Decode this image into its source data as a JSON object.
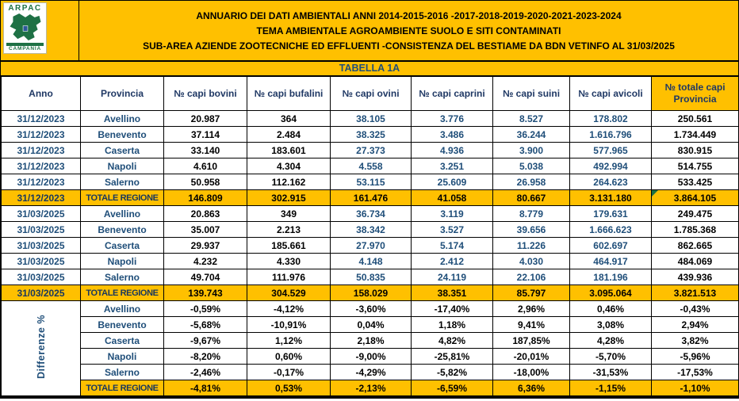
{
  "header": {
    "logo": {
      "top": "ARPAC",
      "bottom": "CAMPANIA"
    },
    "titles": [
      "ANNUARIO DEI DATI AMBIENTALI ANNI 2014-2015-2016 -2017-2018-2019-2020-2021-2023-2024",
      "TEMA AMBIENTALE AGROAMBIENTE SUOLO E SITI CONTAMINATI",
      "SUB-AREA AZIENDE ZOOTECNICHE ED EFFLUENTI -CONSISTENZA DEL BESTIAME  DA BDN VETINFO AL 31/03/2025"
    ]
  },
  "tabella_label": "TABELLA 1A",
  "colors": {
    "band_orange": "#FFC000",
    "header_navy": "#1F3864",
    "data_blue": "#1F4E79",
    "logo_green": "#1E7145"
  },
  "table": {
    "diff_label": "Differenze %",
    "columns": [
      {
        "label": "Anno"
      },
      {
        "label": "Provincia"
      },
      {
        "label": "№ capi bovini"
      },
      {
        "label": "№ capi bufalini"
      },
      {
        "label": "№ capi ovini"
      },
      {
        "label": "№ capi caprini"
      },
      {
        "label": "№ capi suini"
      },
      {
        "label": "№ capi avicoli"
      },
      {
        "label": "№ totale capi",
        "label2": "Provincia",
        "highlight": true
      }
    ],
    "rows": [
      {
        "style": "data",
        "cells": [
          "31/12/2023",
          "Avellino",
          "20.987",
          "364",
          "38.105",
          "3.776",
          "8.527",
          "178.802",
          "250.561"
        ]
      },
      {
        "style": "data",
        "cells": [
          "31/12/2023",
          "Benevento",
          "37.114",
          "2.484",
          "38.325",
          "3.486",
          "36.244",
          "1.616.796",
          "1.734.449"
        ]
      },
      {
        "style": "data",
        "cells": [
          "31/12/2023",
          "Caserta",
          "33.140",
          "183.601",
          "27.373",
          "4.936",
          "3.900",
          "577.965",
          "830.915"
        ]
      },
      {
        "style": "data",
        "cells": [
          "31/12/2023",
          "Napoli",
          "4.610",
          "4.304",
          "4.558",
          "3.251",
          "5.038",
          "492.994",
          "514.755"
        ]
      },
      {
        "style": "data",
        "cells": [
          "31/12/2023",
          "Salerno",
          "50.958",
          "112.162",
          "53.115",
          "25.609",
          "26.958",
          "264.623",
          "533.425"
        ]
      },
      {
        "style": "total",
        "green_corner": true,
        "cells": [
          "31/12/2023",
          "TOTALE REGIONE",
          "146.809",
          "302.915",
          "161.476",
          "41.058",
          "80.667",
          "3.131.180",
          "3.864.105"
        ]
      },
      {
        "style": "data",
        "cells": [
          "31/03/2025",
          "Avellino",
          "20.863",
          "349",
          "36.734",
          "3.119",
          "8.779",
          "179.631",
          "249.475"
        ]
      },
      {
        "style": "data",
        "cells": [
          "31/03/2025",
          "Benevento",
          "35.007",
          "2.213",
          "38.342",
          "3.527",
          "39.656",
          "1.666.623",
          "1.785.368"
        ]
      },
      {
        "style": "data",
        "cells": [
          "31/03/2025",
          "Caserta",
          "29.937",
          "185.661",
          "27.970",
          "5.174",
          "11.226",
          "602.697",
          "862.665"
        ]
      },
      {
        "style": "data",
        "cells": [
          "31/03/2025",
          "Napoli",
          "4.232",
          "4.330",
          "4.148",
          "2.412",
          "4.030",
          "464.917",
          "484.069"
        ]
      },
      {
        "style": "data",
        "cells": [
          "31/03/2025",
          "Salerno",
          "49.704",
          "111.976",
          "50.835",
          "24.119",
          "22.106",
          "181.196",
          "439.936"
        ]
      },
      {
        "style": "total",
        "cells": [
          "31/03/2025",
          "TOTALE REGIONE",
          "139.743",
          "304.529",
          "158.029",
          "38.351",
          "85.797",
          "3.095.064",
          "3.821.513"
        ]
      },
      {
        "style": "pct",
        "first": true,
        "cells": [
          "Avellino",
          "-0,59%",
          "-4,12%",
          "-3,60%",
          "-17,40%",
          "2,96%",
          "0,46%",
          "-0,43%"
        ]
      },
      {
        "style": "pct",
        "cells": [
          "Benevento",
          "-5,68%",
          "-10,91%",
          "0,04%",
          "1,18%",
          "9,41%",
          "3,08%",
          "2,94%"
        ]
      },
      {
        "style": "pct",
        "cells": [
          "Caserta",
          "-9,67%",
          "1,12%",
          "2,18%",
          "4,82%",
          "187,85%",
          "4,28%",
          "3,82%"
        ]
      },
      {
        "style": "pct",
        "cells": [
          "Napoli",
          "-8,20%",
          "0,60%",
          "-9,00%",
          "-25,81%",
          "-20,01%",
          "-5,70%",
          "-5,96%"
        ]
      },
      {
        "style": "pct",
        "cells": [
          "Salerno",
          "-2,46%",
          "-0,17%",
          "-4,29%",
          "-5,82%",
          "-18,00%",
          "-31,53%",
          "-17,53%"
        ]
      },
      {
        "style": "pct_total",
        "cells": [
          "TOTALE REGIONE",
          "-4,81%",
          "0,53%",
          "-2,13%",
          "-6,59%",
          "6,36%",
          "-1,15%",
          "-1,10%"
        ]
      }
    ]
  }
}
